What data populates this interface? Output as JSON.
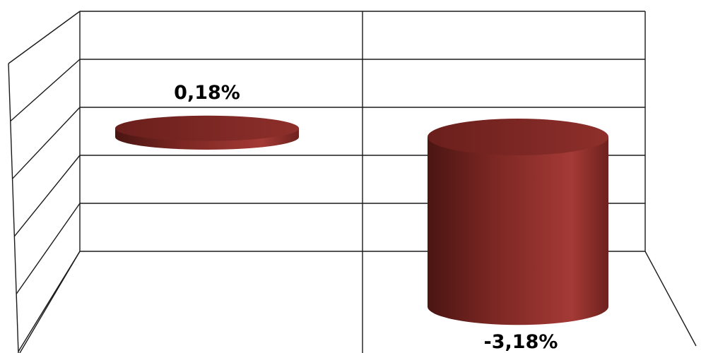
{
  "chart_data": {
    "type": "bar",
    "style": "3d-cylinder",
    "categories": [
      "",
      ""
    ],
    "series": [
      {
        "values": [
          0.18,
          -3.18
        ],
        "labels": [
          "0,18%",
          "-3,18%"
        ],
        "color": "#8b2e2a"
      }
    ],
    "ylim": [
      -4.0,
      1.0
    ],
    "grid": true,
    "legend": "none"
  }
}
